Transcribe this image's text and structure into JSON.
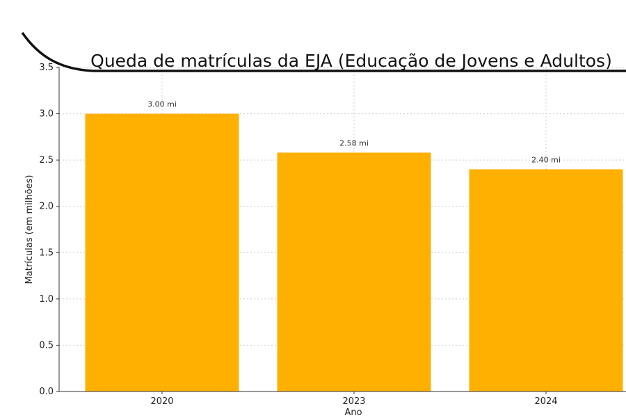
{
  "chart_data": {
    "type": "bar",
    "title": "Queda de matrículas da EJA (Educação de Jovens e Adultos)",
    "xlabel": "Ano",
    "ylabel": "Matrículas (em milhões)",
    "categories": [
      "2020",
      "2023",
      "2024"
    ],
    "values": [
      3.0,
      2.58,
      2.4
    ],
    "data_labels": [
      "3.00 mi",
      "2.58 mi",
      "2.40 mi"
    ],
    "ylim": [
      0,
      3.5
    ],
    "yticks": [
      0.0,
      0.5,
      1.0,
      1.5,
      2.0,
      2.5,
      3.0,
      3.5
    ],
    "ytick_labels": [
      "0.0",
      "0.5",
      "1.0",
      "1.5",
      "2.0",
      "2.5",
      "3.0",
      "3.5"
    ],
    "grid": true,
    "colors": {
      "bar": "#FFB000",
      "grid": "#cccccc",
      "axis": "#333333",
      "swoosh": "#111111"
    }
  }
}
